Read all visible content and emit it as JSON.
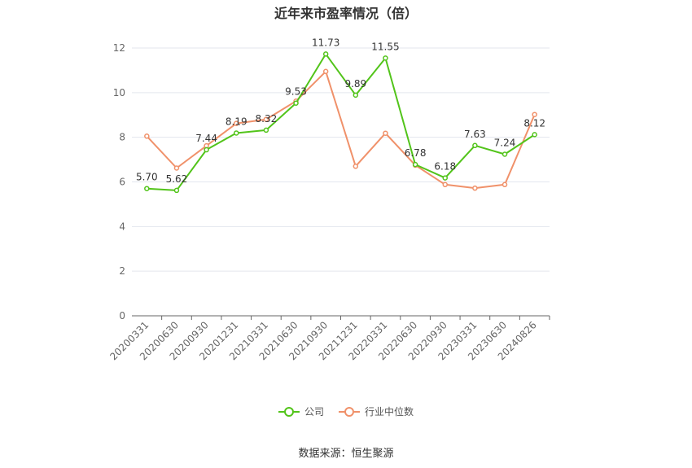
{
  "chart_data": {
    "type": "line",
    "title": "近年来市盈率情况（倍）",
    "categories": [
      "20200331",
      "20200630",
      "20200930",
      "20201231",
      "20210331",
      "20210630",
      "20210930",
      "20211231",
      "20220331",
      "20220630",
      "20220930",
      "20230331",
      "20230630",
      "20240826"
    ],
    "series": [
      {
        "name": "公司",
        "color": "#52c41a",
        "values": [
          5.7,
          5.62,
          7.44,
          8.19,
          8.32,
          9.53,
          11.73,
          9.89,
          11.55,
          6.78,
          6.18,
          7.63,
          7.24,
          8.12
        ],
        "labels": [
          "5.70",
          "5.62",
          "7.44",
          "8.19",
          "8.32",
          "9.53",
          "11.73",
          "9.89",
          "11.55",
          "6.78",
          "6.18",
          "7.63",
          "7.24",
          "8.12"
        ]
      },
      {
        "name": "行业中位数",
        "color": "#f0916a",
        "values": [
          8.05,
          6.62,
          7.62,
          8.62,
          8.8,
          9.62,
          10.95,
          6.7,
          8.18,
          6.75,
          5.88,
          5.72,
          5.88,
          9.02
        ]
      }
    ],
    "ylim": [
      0,
      12
    ],
    "yticks": [
      0,
      2,
      4,
      6,
      8,
      10,
      12
    ],
    "grid": true,
    "legend_position": "bottom"
  },
  "source": "数据来源：恒生聚源"
}
